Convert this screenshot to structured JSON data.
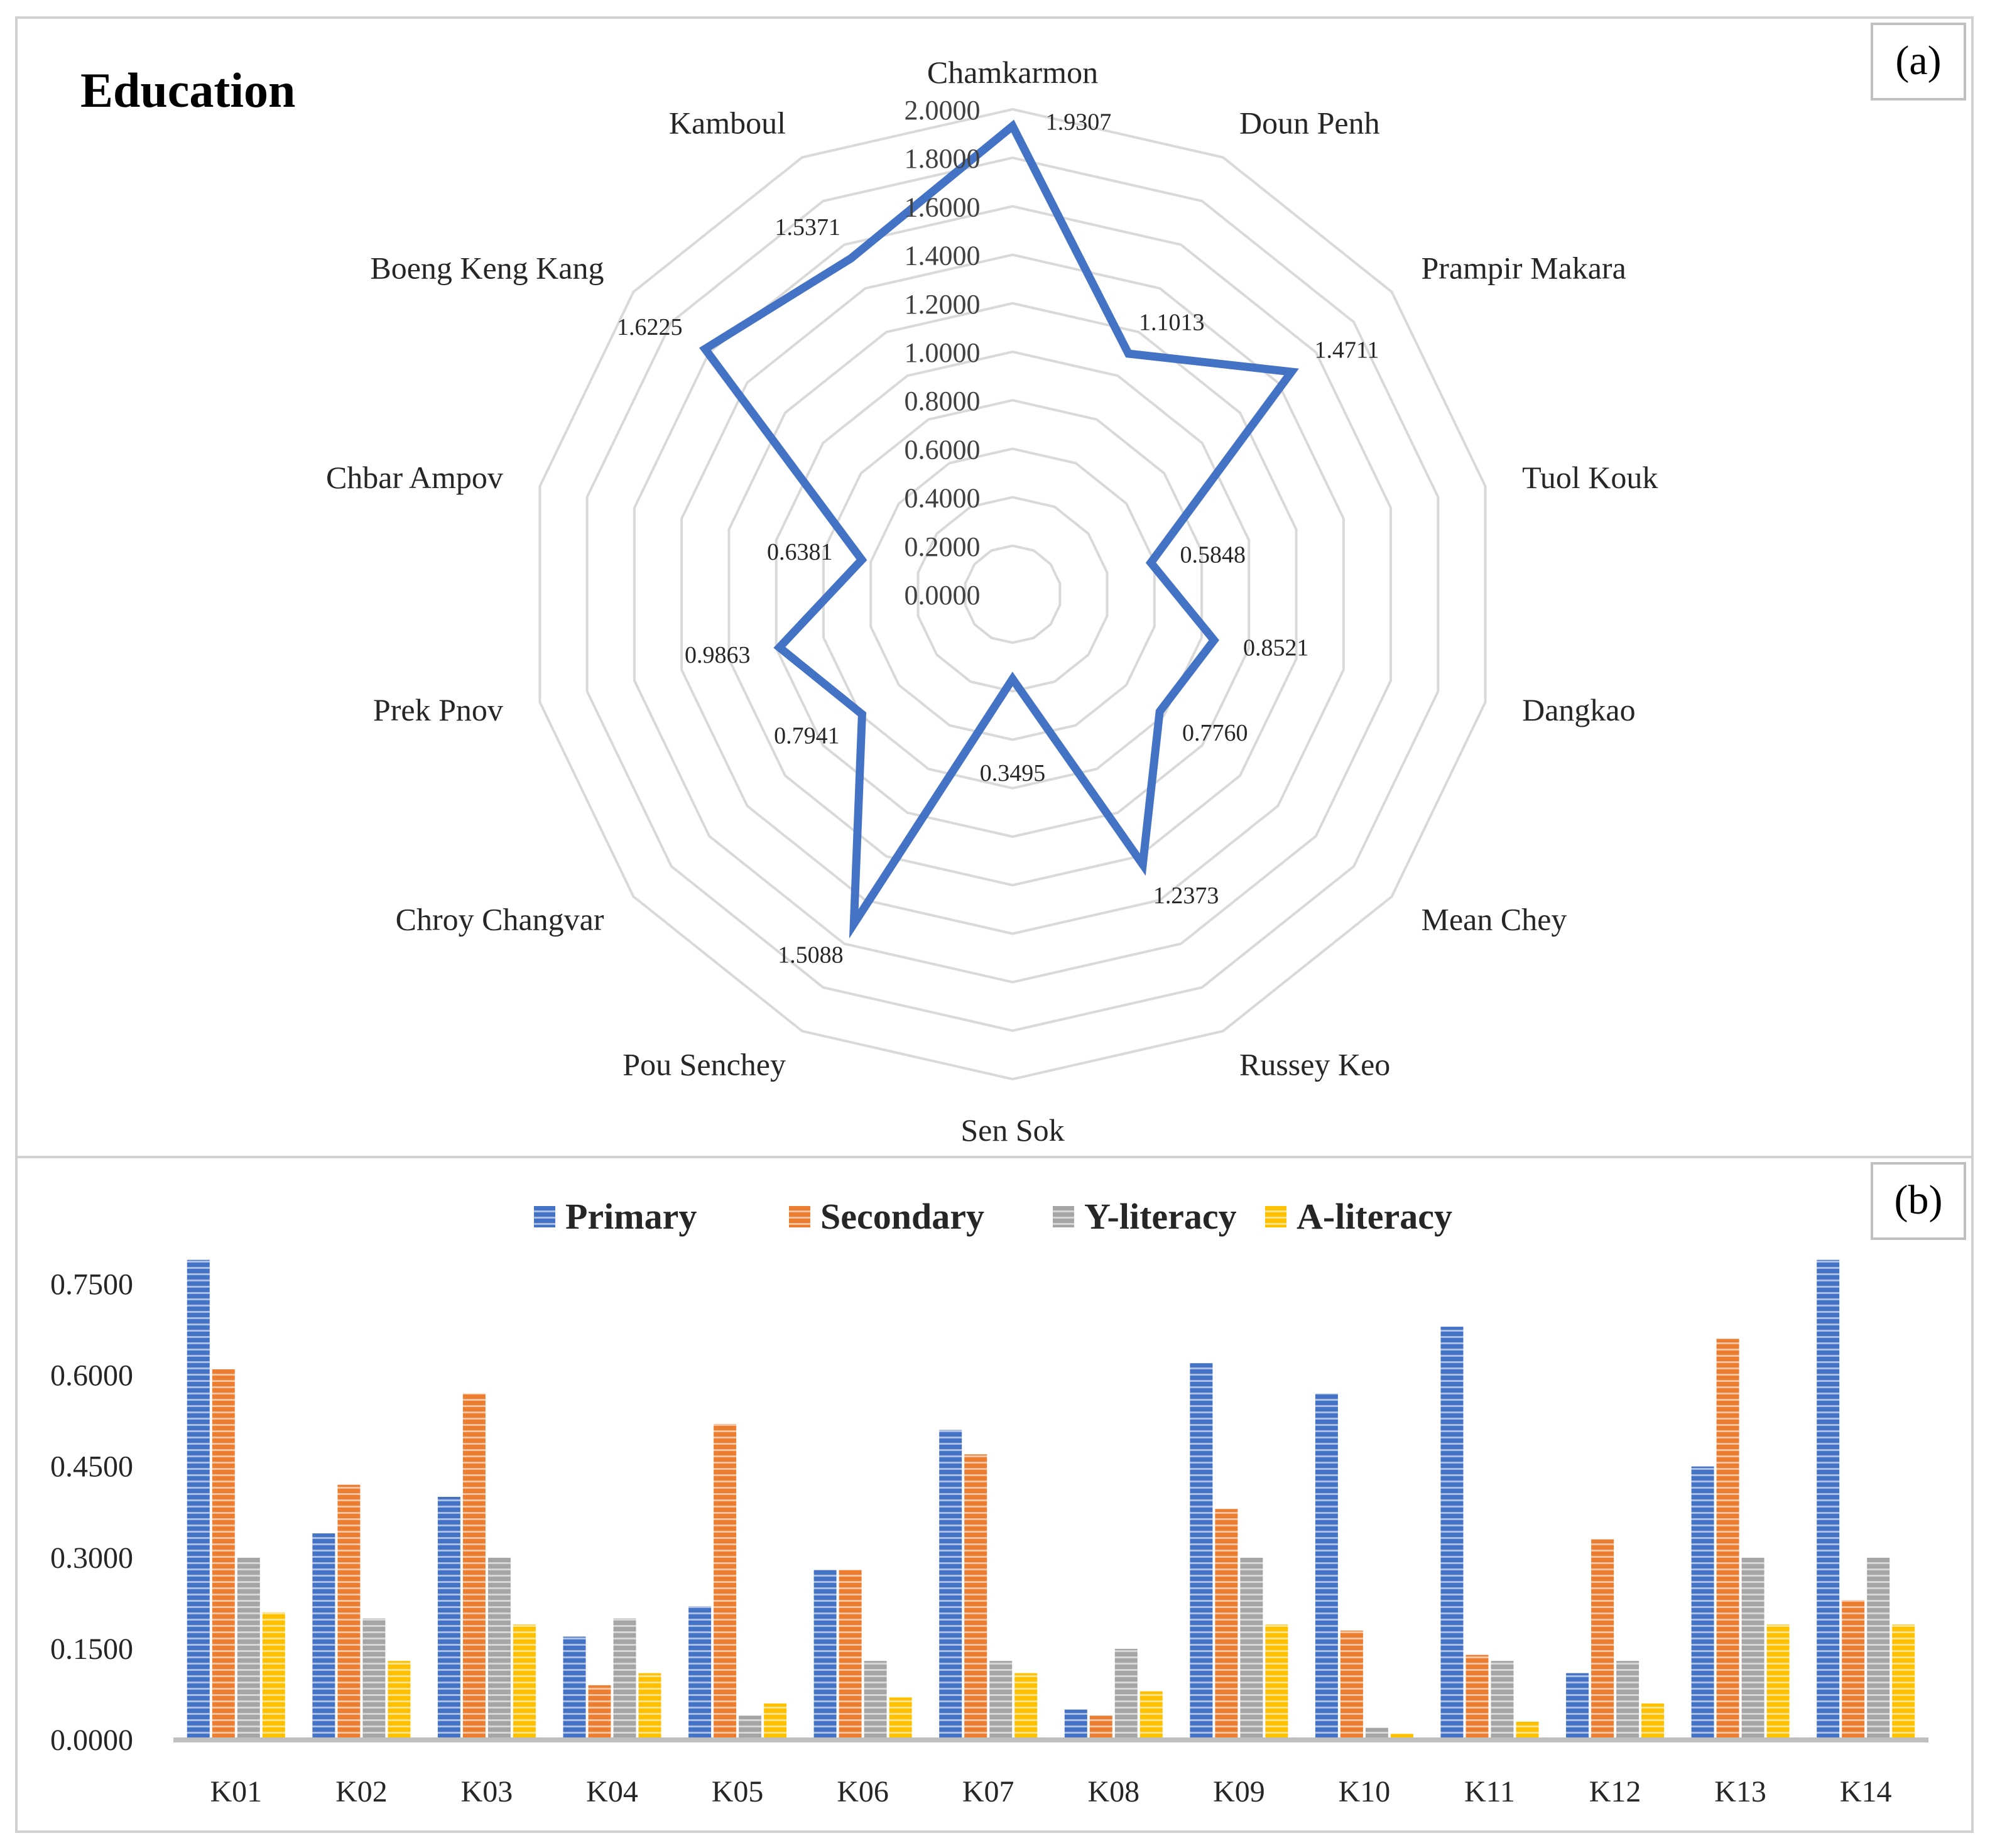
{
  "chart_data": [
    {
      "panel_label": "(a)",
      "type": "radar",
      "title": "Education",
      "radial_ticks": [
        "0.0000",
        "0.2000",
        "0.4000",
        "0.6000",
        "0.8000",
        "1.0000",
        "1.2000",
        "1.4000",
        "1.6000",
        "1.8000",
        "2.0000"
      ],
      "rlim": [
        0,
        2
      ],
      "categories": [
        "Chamkarmon",
        "Doun Penh",
        "Prampir Makara",
        "Tuol Kouk",
        "Dangkao",
        "Mean Chey",
        "Russey Keo",
        "Sen Sok",
        "Pou Senchey",
        "Chroy Changvar",
        "Prek Pnov",
        "Chbar Ampov",
        "Boeng Keng Kang",
        "Kamboul"
      ],
      "values": [
        1.9307,
        1.1013,
        1.4711,
        0.5848,
        0.8521,
        0.776,
        1.2373,
        0.3495,
        1.5088,
        0.7941,
        0.9863,
        0.6381,
        1.6225,
        1.5371
      ],
      "value_labels": [
        "1.9307",
        "1.1013",
        "1.4711",
        "0.5848",
        "0.8521",
        "0.7760",
        "1.2373",
        "0.3495",
        "1.5088",
        "0.7941",
        "0.9863",
        "0.6381",
        "1.6225",
        "1.5371"
      ],
      "line_color": "#4472C4",
      "grid_color": "#D9D9D9"
    },
    {
      "panel_label": "(b)",
      "type": "bar",
      "categories": [
        "K01",
        "K02",
        "K03",
        "K04",
        "K05",
        "K06",
        "K07",
        "K08",
        "K09",
        "K10",
        "K11",
        "K12",
        "K13",
        "K14"
      ],
      "ylim": [
        0,
        0.8
      ],
      "y_ticks": [
        "0.0000",
        "0.1500",
        "0.3000",
        "0.4500",
        "0.6000",
        "0.7500"
      ],
      "legend_position": "top",
      "series": [
        {
          "name": "Primary",
          "color": "#4472C4",
          "values": [
            0.79,
            0.34,
            0.4,
            0.17,
            0.22,
            0.28,
            0.51,
            0.05,
            0.62,
            0.57,
            0.68,
            0.11,
            0.45,
            0.79
          ]
        },
        {
          "name": "Secondary",
          "color": "#ED7D31",
          "values": [
            0.61,
            0.42,
            0.57,
            0.09,
            0.52,
            0.28,
            0.47,
            0.04,
            0.38,
            0.18,
            0.14,
            0.33,
            0.66,
            0.23
          ]
        },
        {
          "name": "Y-literacy",
          "color": "#A5A5A5",
          "values": [
            0.3,
            0.2,
            0.3,
            0.2,
            0.04,
            0.13,
            0.13,
            0.15,
            0.3,
            0.02,
            0.13,
            0.13,
            0.3,
            0.3
          ]
        },
        {
          "name": "A-literacy",
          "color": "#FFC000",
          "values": [
            0.21,
            0.13,
            0.19,
            0.11,
            0.06,
            0.07,
            0.11,
            0.08,
            0.19,
            0.01,
            0.03,
            0.06,
            0.19,
            0.19
          ]
        }
      ]
    }
  ]
}
